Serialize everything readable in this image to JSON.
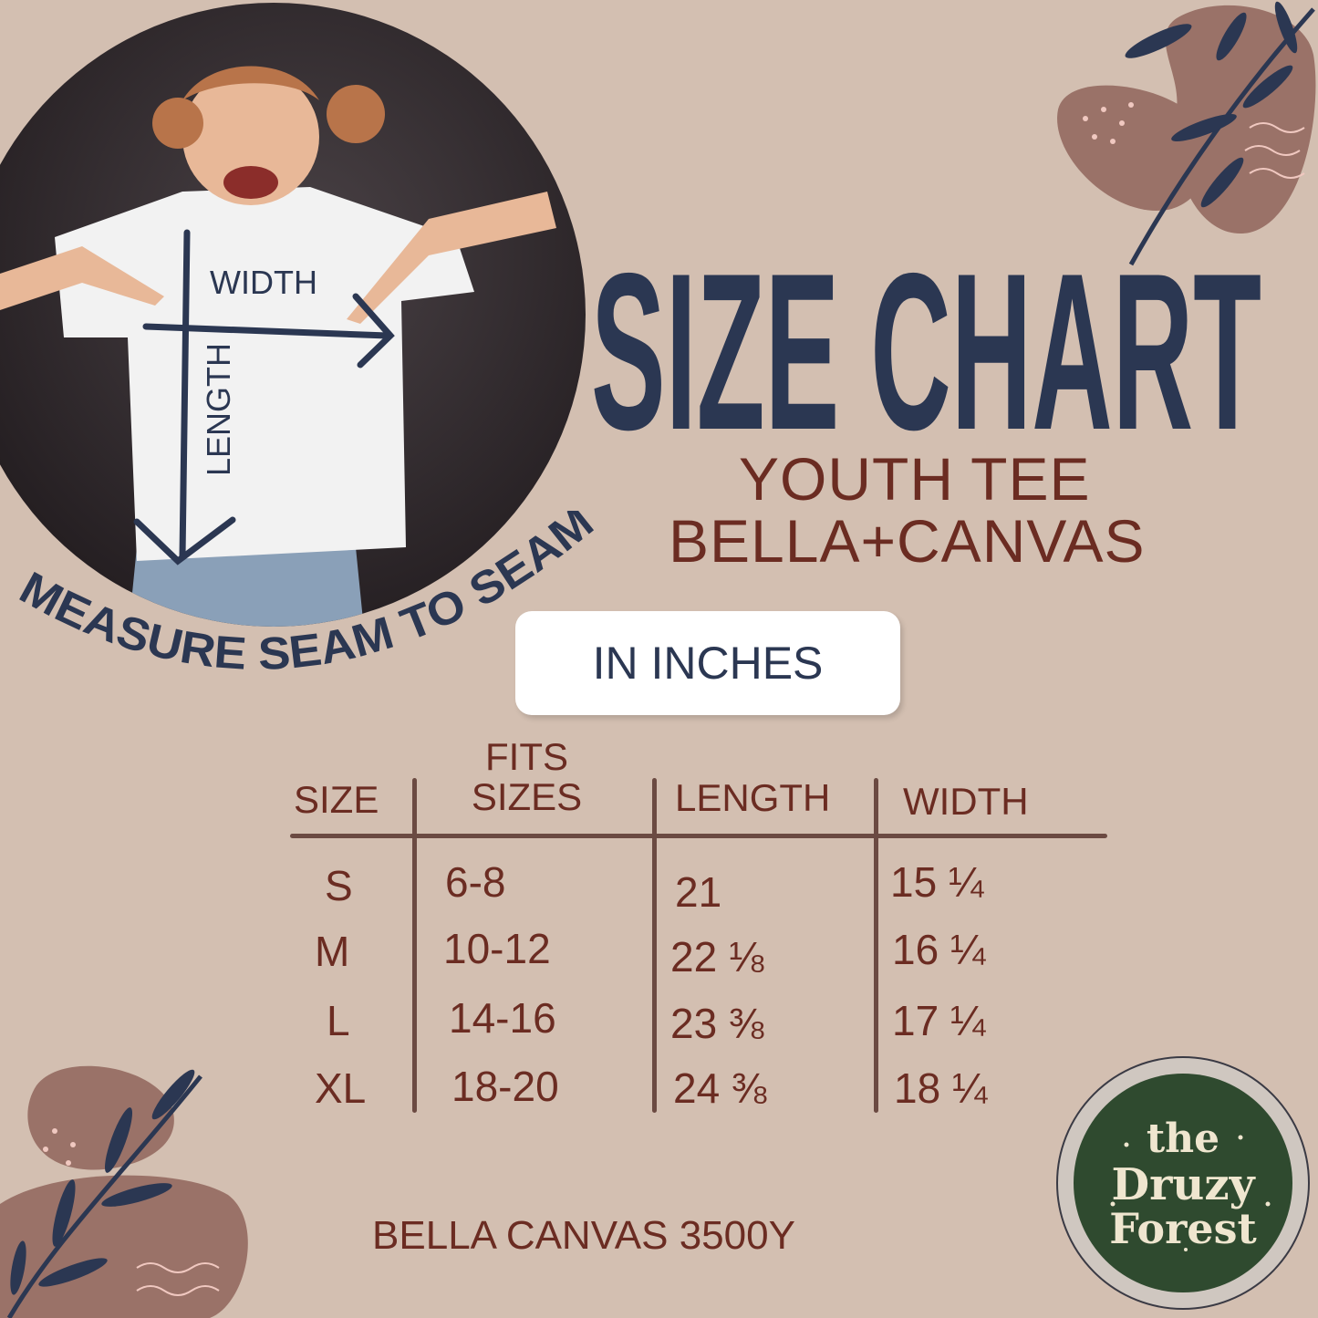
{
  "title": "SIZE CHART",
  "subtitle_line1": "YOUTH TEE",
  "subtitle_line2": "BELLA+CANVAS",
  "photo": {
    "width_label": "WIDTH",
    "length_label": "LENGTH"
  },
  "measure_note": "MEASURE SEAM TO SEAM",
  "unit_badge": "IN INCHES",
  "table": {
    "headers": [
      "SIZE",
      "FITS SIZES",
      "LENGTH",
      "WIDTH"
    ],
    "fits_line1": "FITS",
    "fits_line2": "SIZES",
    "rows": [
      {
        "size": "S",
        "fits": "6-8",
        "length": "21",
        "width": "15 ¼"
      },
      {
        "size": "M",
        "fits": "10-12",
        "length": "22 ⅛",
        "width": "16 ¼"
      },
      {
        "size": "L",
        "fits": "14-16",
        "length": "23 ⅜",
        "width": "17 ¼"
      },
      {
        "size": "XL",
        "fits": "18-20",
        "length": "24 ⅜",
        "width": "18 ¼"
      }
    ]
  },
  "footer": "BELLA CANVAS 3500Y",
  "logo": {
    "line1": "the",
    "line2": "Druzy",
    "line3": "Forest"
  },
  "colors": {
    "background": "#d3bfb1",
    "navy": "#2b3752",
    "brown": "#6b2c22",
    "logo_green": "#2f4a2f"
  }
}
